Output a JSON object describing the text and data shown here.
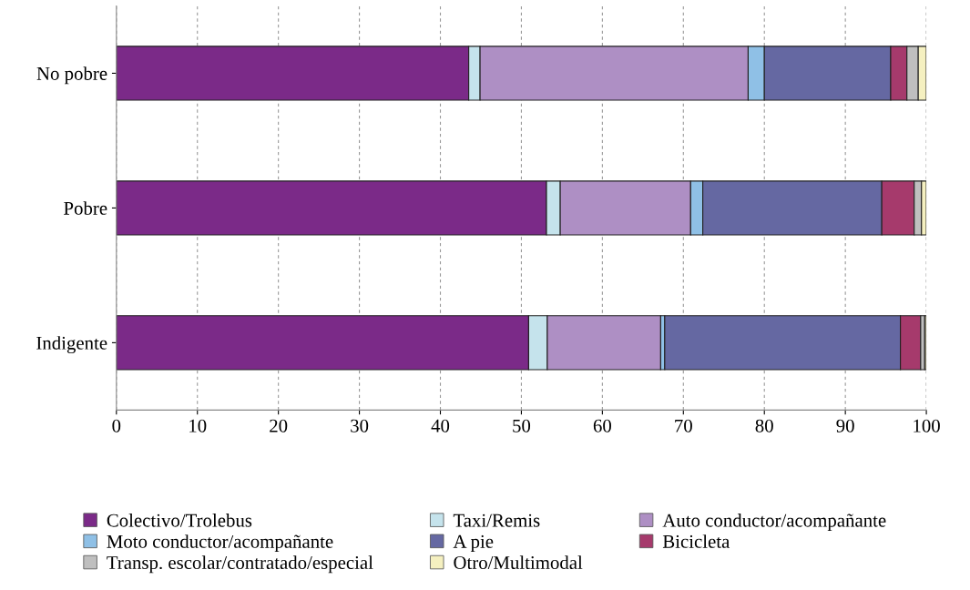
{
  "chart_data": {
    "type": "bar",
    "orientation": "horizontal",
    "stacked": true,
    "categories": [
      "No pobre",
      "Pobre",
      "Indigente"
    ],
    "series": [
      {
        "name": "Colectivo/Trolebus",
        "color": "#7b2a88",
        "values": [
          43.5,
          53.1,
          50.9
        ]
      },
      {
        "name": "Taxi/Remis",
        "color": "#c5e3ec",
        "values": [
          1.4,
          1.7,
          2.3
        ]
      },
      {
        "name": "Auto conductor/acompañante",
        "color": "#ae8fc4",
        "values": [
          33.1,
          16.1,
          14.0
        ]
      },
      {
        "name": "Moto conductor/acompañante",
        "color": "#8fc0e6",
        "values": [
          2.0,
          1.5,
          0.5
        ]
      },
      {
        "name": "A pie",
        "color": "#6568a2",
        "values": [
          15.6,
          22.1,
          29.1
        ]
      },
      {
        "name": "Bicicleta",
        "color": "#a63a6c",
        "values": [
          2.0,
          4.0,
          2.5
        ]
      },
      {
        "name": "Transp. escolar/contratado/especial",
        "color": "#bfbfbf",
        "values": [
          1.4,
          0.9,
          0.5
        ]
      },
      {
        "name": "Otro/Multimodal",
        "color": "#f5f0c0",
        "values": [
          1.0,
          0.6,
          0.2
        ]
      }
    ],
    "xlim": [
      0,
      100
    ],
    "xticks": [
      0,
      10,
      20,
      30,
      40,
      50,
      60,
      70,
      80,
      90,
      100
    ],
    "grid": "x",
    "legend": "bottom"
  }
}
